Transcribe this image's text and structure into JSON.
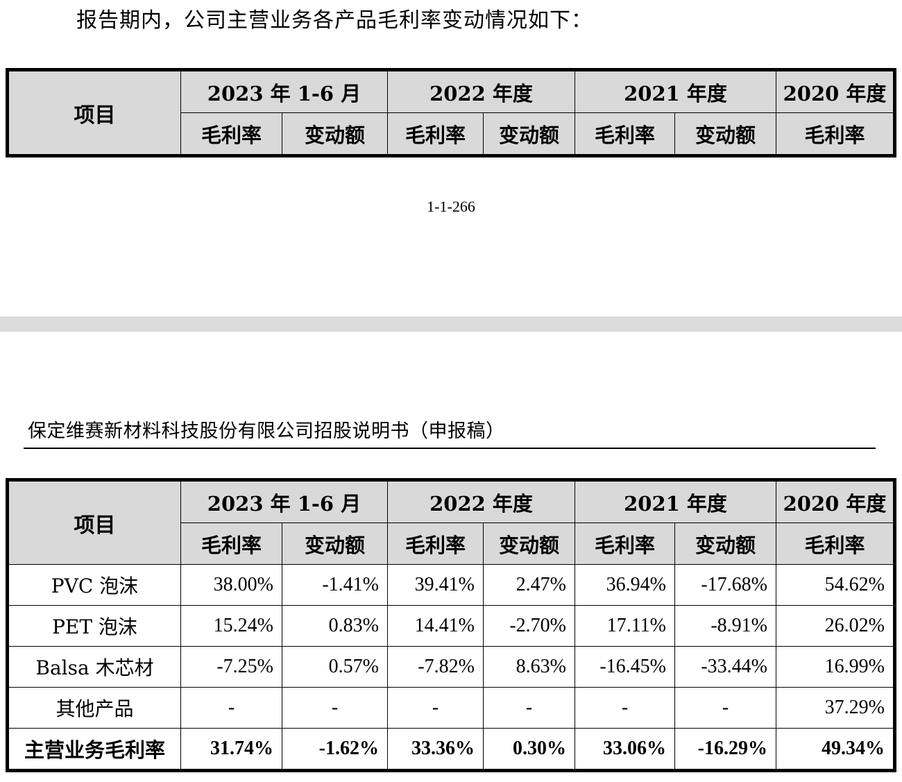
{
  "intro_text": "报告期内，公司主营业务各产品毛利率变动情况如下：",
  "page_number": "1-1-266",
  "document_header": "保定维赛新材料科技股份有限公司招股说明书（申报稿）",
  "table": {
    "item_header": "项目",
    "periods": [
      "2023 年 1-6 月",
      "2022 年度",
      "2021 年度",
      "2020 年度"
    ],
    "sub_headers": [
      "毛利率",
      "变动额",
      "毛利率",
      "变动额",
      "毛利率",
      "变动额",
      "毛利率"
    ],
    "rows": [
      {
        "label": "PVC 泡沫",
        "values": [
          "38.00%",
          "-1.41%",
          "39.41%",
          "2.47%",
          "36.94%",
          "-17.68%",
          "54.62%"
        ]
      },
      {
        "label": "PET 泡沫",
        "values": [
          "15.24%",
          "0.83%",
          "14.41%",
          "-2.70%",
          "17.11%",
          "-8.91%",
          "26.02%"
        ]
      },
      {
        "label": "Balsa 木芯材",
        "values": [
          "-7.25%",
          "0.57%",
          "-7.82%",
          "8.63%",
          "-16.45%",
          "-33.44%",
          "16.99%"
        ]
      },
      {
        "label": "其他产品",
        "values": [
          "-",
          "-",
          "-",
          "-",
          "-",
          "-",
          "37.29%"
        ]
      }
    ],
    "total": {
      "label": "主营业务毛利率",
      "values": [
        "31.74%",
        "-1.62%",
        "33.36%",
        "0.30%",
        "33.06%",
        "-16.29%",
        "49.34%"
      ]
    }
  },
  "colors": {
    "header_fill": "#d9d9d9",
    "page_gap": "#dcdcdc",
    "text": "#000000"
  }
}
